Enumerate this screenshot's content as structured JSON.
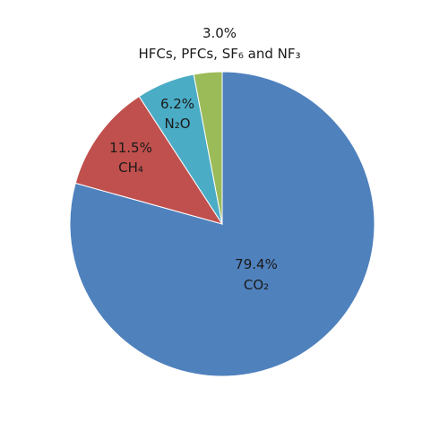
{
  "chart_data": {
    "type": "pie",
    "start_angle_deg": 0,
    "direction": "clockwise",
    "slices": [
      {
        "value": 79.4,
        "percent_label": "79.4%",
        "name": "CO₂",
        "color": "#4f81bd"
      },
      {
        "value": 11.5,
        "percent_label": "11.5%",
        "name": "CH₄",
        "color": "#c0504d"
      },
      {
        "value": 6.2,
        "percent_label": "6.2%",
        "name": "N₂O",
        "color": "#4bacc6"
      },
      {
        "value": 3.0,
        "percent_label": "3.0%",
        "name": "HFCs, PFCs, SF₆ and NF₃",
        "color": "#9bbb59"
      }
    ]
  }
}
